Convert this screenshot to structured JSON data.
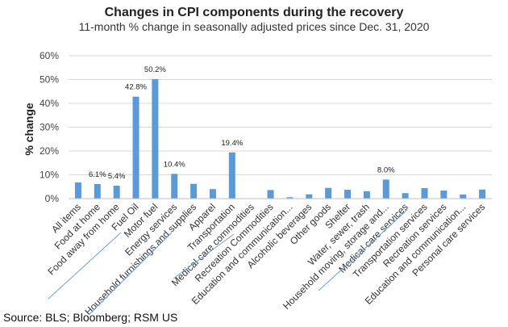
{
  "chart_data": {
    "type": "bar",
    "title": "Changes in CPI components during the recovery",
    "subtitle": "11-month % change in seasonally adjusted prices since Dec. 31, 2020",
    "ylabel": "% change",
    "xlabel": "",
    "ylim": [
      0,
      60
    ],
    "yticks": [
      "0%",
      "10%",
      "20%",
      "30%",
      "40%",
      "50%",
      "60%"
    ],
    "grid": true,
    "categories": [
      "All items",
      "Food at home",
      "Food away from home",
      "Fuel Oil",
      "Motor fuel",
      "Energy services",
      "Household furnishings and supplies",
      "Apparel",
      "Transportation",
      "Medical care commodities",
      "Recreation Commodities",
      "Education and communication...",
      "Alcoholic beverages",
      "Other goods",
      "Shelter",
      "Water, sewer, trash",
      "Household moving, storage and...",
      "Medical care services",
      "Transportation services",
      "Recreation services",
      "Education and communication...",
      "Personal care services"
    ],
    "values": [
      6.8,
      6.1,
      5.4,
      42.8,
      50.2,
      10.4,
      6.2,
      4.0,
      19.4,
      0.0,
      3.6,
      0.6,
      1.8,
      4.5,
      3.7,
      3.1,
      8.0,
      2.3,
      4.4,
      3.4,
      1.7,
      3.8
    ],
    "data_labels": [
      "",
      "6.1%",
      "5.4%",
      "42.8%",
      "50.2%",
      "10.4%",
      "",
      "",
      "19.4%",
      "",
      "",
      "",
      "",
      "",
      "",
      "",
      "8.0%",
      "",
      "",
      "",
      "",
      ""
    ]
  },
  "source": "Source: BLS; Bloomberg; RSM US",
  "colors": {
    "bar": "#5b9bd5",
    "grid": "#d9d9d9"
  }
}
